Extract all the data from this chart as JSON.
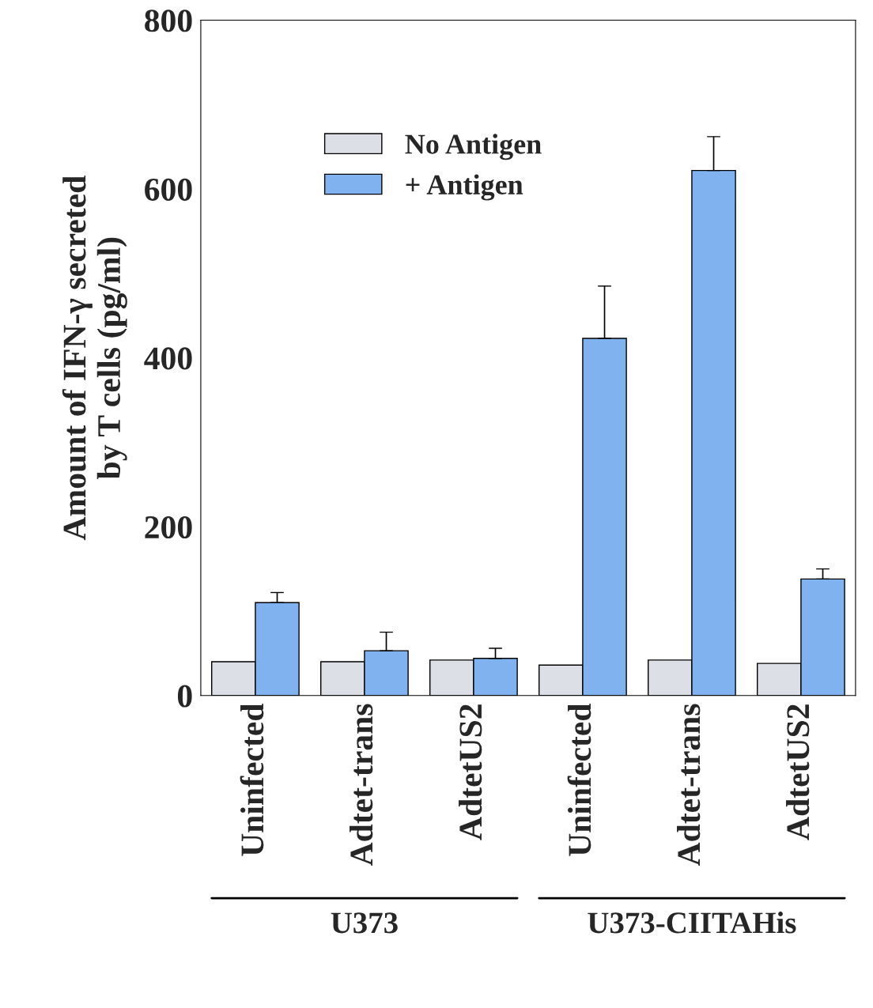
{
  "chart_data": {
    "type": "bar",
    "ylabel": "Amount of IFN-γ secreted\nby T cells (pg/ml)",
    "categories": [
      "Uninfected",
      "Adtet-trans",
      "AdtetUS2",
      "Uninfected",
      "Adtet-trans",
      "AdtetUS2"
    ],
    "series": [
      {
        "name": "No Antigen",
        "color": "#dcdfe6",
        "values": [
          40,
          40,
          42,
          36,
          42,
          38
        ]
      },
      {
        "name": "+ Antigen",
        "color": "#7fb2ee",
        "values": [
          110,
          53,
          44,
          423,
          622,
          138
        ],
        "errors": [
          12,
          22,
          12,
          62,
          40,
          12
        ]
      }
    ],
    "ylim": [
      0,
      800
    ],
    "yticks": [
      0,
      200,
      400,
      600,
      800
    ],
    "annotations": [
      "U373",
      "U373-CIITAHis"
    ],
    "legend": "top left",
    "grid": false
  }
}
